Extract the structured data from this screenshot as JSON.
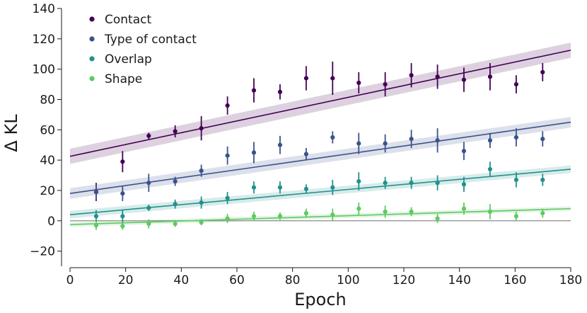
{
  "chart_data": {
    "type": "scatter",
    "title": "",
    "xlabel": "Epoch",
    "ylabel": "Δ KL",
    "xlim": [
      0,
      180
    ],
    "ylim": [
      -30,
      140
    ],
    "xticks": [
      0,
      20,
      40,
      60,
      80,
      100,
      120,
      140,
      160,
      180
    ],
    "yticks": [
      -20,
      0,
      20,
      40,
      60,
      80,
      100,
      120,
      140
    ],
    "grid": false,
    "legend_position": "top-left",
    "reference_line_y": 0,
    "x": [
      9.4,
      18.9,
      28.3,
      37.8,
      47.2,
      56.6,
      66.1,
      75.5,
      84.9,
      94.4,
      103.8,
      113.3,
      122.7,
      132.1,
      141.6,
      151.0,
      160.4,
      169.9
    ],
    "series": [
      {
        "name": "Contact",
        "color": "#440154",
        "values": [
          19,
          39,
          56,
          59,
          61,
          76,
          86,
          85,
          94,
          94,
          91,
          90,
          96,
          95,
          93,
          95,
          90,
          98
        ],
        "errors": [
          6,
          7,
          2,
          4,
          8,
          6,
          8,
          5,
          8,
          11,
          7,
          8,
          8,
          8,
          8,
          9,
          6,
          6
        ],
        "fit": {
          "start": 42.5,
          "end": 112.5,
          "band": 5
        }
      },
      {
        "name": "Type of contact",
        "color": "#3b528b",
        "values": [
          19,
          18,
          25,
          26,
          33,
          43,
          45,
          50,
          44,
          55,
          51,
          51,
          54,
          53,
          46,
          53,
          55,
          54
        ],
        "errors": [
          5,
          5,
          6,
          3,
          4,
          6,
          7,
          6,
          4,
          4,
          7,
          6,
          6,
          8,
          6,
          5,
          6,
          5
        ],
        "fit": {
          "start": 18,
          "end": 65,
          "band": 3.5
        }
      },
      {
        "name": "Overlap",
        "color": "#21918c",
        "values": [
          3,
          3,
          8.5,
          11,
          12,
          15,
          22,
          22,
          21,
          22,
          26,
          25,
          25,
          25,
          24,
          34,
          27,
          27
        ],
        "errors": [
          4,
          4,
          2,
          3,
          4,
          4,
          4,
          4,
          3,
          5,
          6,
          4,
          4,
          5,
          5,
          5,
          5,
          4
        ],
        "fit": {
          "start": 4,
          "end": 34,
          "band": 2.5
        }
      },
      {
        "name": "Shape",
        "color": "#5ec962",
        "values": [
          -3,
          -3.5,
          -2,
          -2,
          -1,
          1.5,
          3,
          3,
          5,
          4,
          8,
          6,
          6,
          1.5,
          8,
          6,
          3,
          5
        ],
        "errors": [
          3,
          2.5,
          3,
          2,
          2,
          3,
          3,
          2.5,
          3,
          4,
          4,
          4,
          3,
          3,
          4,
          5,
          3,
          3
        ],
        "fit": {
          "start": -2.5,
          "end": 8,
          "band": 1.5
        }
      }
    ]
  }
}
